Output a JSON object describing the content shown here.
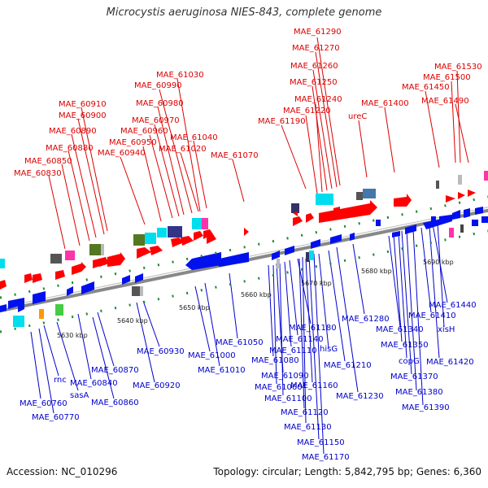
{
  "title": "Microcystis aeruginosa NIES-843, complete genome",
  "footer": {
    "accession": "Accession: NC_010296",
    "summary": "Topology: circular; Length: 5,842,795 bp; Genes: 6,360"
  },
  "colors": {
    "upper_label": "#dd0000",
    "lower_label": "#0000cc",
    "forward_gene": "#ff0000",
    "reverse_gene": "#0011ee",
    "backbone": "#888888",
    "tick": "#228833"
  },
  "ticks": [
    "5630 kbp",
    "5640 kbp",
    "5650 kbp",
    "5660 kbp",
    "5670 kbp",
    "5680 kbp",
    "5690 kbp"
  ],
  "upper_labels": [
    "MAE_61290",
    "MAE_61270",
    "MAE_61260",
    "MAE_61250",
    "MAE_61240",
    "MAE_61220",
    "MAE_61190",
    "ureC",
    "MAE_61400",
    "MAE_61530",
    "MAE_61500",
    "MAE_61450",
    "MAE_61490",
    "MAE_61030",
    "MAE_60990",
    "MAE_60980",
    "MAE_60970",
    "MAE_60960",
    "MAE_60950",
    "MAE_60940",
    "MAE_61040",
    "MAE_61020",
    "MAE_61070",
    "MAE_60910",
    "MAE_60900",
    "MAE_60890",
    "MAE_60880",
    "MAE_60850",
    "MAE_60830"
  ],
  "lower_labels": [
    "rnc",
    "sasA",
    "MAE_60760",
    "MAE_60770",
    "MAE_60840",
    "MAE_60870",
    "MAE_60860",
    "MAE_60930",
    "MAE_60920",
    "MAE_61000",
    "MAE_61010",
    "MAE_61050",
    "MAE_61180",
    "MAE_61140",
    "MAE_61110",
    "MAE_61080",
    "MAE_61090",
    "MAE_61060",
    "MAE_61100",
    "MAE_61120",
    "MAE_61130",
    "MAE_61150",
    "MAE_61170",
    "MAE_61160",
    "hisG",
    "MAE_61210",
    "MAE_61230",
    "MAE_61280",
    "MAE_61340",
    "MAE_61350",
    "MAE_61410",
    "MAE_61440",
    "xisH",
    "copG",
    "MAE_61420",
    "MAE_61370",
    "MAE_61380",
    "MAE_61390"
  ]
}
